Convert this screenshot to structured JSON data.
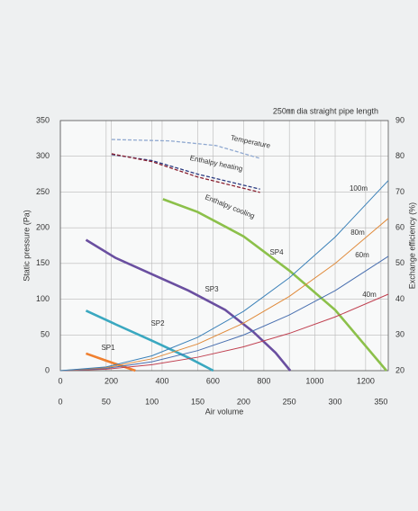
{
  "chart_data": {
    "type": "line",
    "title": "250㎜ dia straight pipe length",
    "xlabel": "Air volume",
    "ylabel": "Static pressure (Pa)",
    "y2label": "Exchange efficiency (%)",
    "xlim": [
      0,
      358
    ],
    "xticks": [
      0,
      50,
      100,
      150,
      200,
      250,
      300,
      350
    ],
    "x2lim": [
      0,
      1289
    ],
    "x2ticks": [
      0,
      200,
      400,
      600,
      800,
      1000,
      1200
    ],
    "ylim": [
      0,
      350
    ],
    "yticks": [
      0,
      50,
      100,
      150,
      200,
      250,
      300,
      350
    ],
    "y2lim": [
      20,
      90
    ],
    "y2ticks": [
      20,
      30,
      40,
      50,
      60,
      70,
      80,
      90
    ],
    "grid": true,
    "series": [
      {
        "name": "SP1",
        "color": "#f08030",
        "x": [
          28,
          50,
          82
        ],
        "values": [
          24,
          14,
          0
        ]
      },
      {
        "name": "SP2",
        "color": "#3aa8c0",
        "x": [
          28,
          60,
          100,
          140,
          167
        ],
        "values": [
          84,
          65,
          42,
          18,
          0
        ]
      },
      {
        "name": "SP3",
        "color": "#6a4fa0",
        "x": [
          28,
          60,
          100,
          140,
          180,
          210,
          235,
          251
        ],
        "values": [
          183,
          158,
          135,
          112,
          85,
          55,
          25,
          0
        ]
      },
      {
        "name": "SP4",
        "color": "#8cc04a",
        "x": [
          112,
          150,
          200,
          250,
          300,
          356
        ],
        "values": [
          240,
          222,
          188,
          140,
          85,
          0
        ]
      },
      {
        "name": "40m",
        "color": "#c04050",
        "x": [
          0,
          50,
          100,
          150,
          200,
          250,
          300,
          358
        ],
        "values": [
          0,
          2.1,
          8.3,
          18.8,
          33.4,
          52.2,
          75.2,
          107
        ]
      },
      {
        "name": "60m",
        "color": "#4a70b0",
        "x": [
          0,
          50,
          100,
          150,
          200,
          250,
          300,
          358
        ],
        "values": [
          0,
          3.1,
          12.5,
          28.1,
          49.9,
          78,
          112,
          160
        ]
      },
      {
        "name": "80m",
        "color": "#e08a3a",
        "x": [
          0,
          50,
          100,
          150,
          200,
          250,
          300,
          358
        ],
        "values": [
          0,
          4.2,
          16.6,
          37.4,
          66.5,
          104,
          150,
          213
        ]
      },
      {
        "name": "100m",
        "color": "#3a80b8",
        "x": [
          0,
          50,
          100,
          150,
          200,
          250,
          300,
          358
        ],
        "values": [
          0,
          5.2,
          20.8,
          46.7,
          83,
          130,
          187,
          266
        ]
      },
      {
        "name": "Temperature",
        "color": "#8fa8d0",
        "axis": "y2",
        "dashed": true,
        "x": [
          56,
          120,
          170,
          218
        ],
        "values": [
          84.7,
          84.3,
          83,
          79.4
        ]
      },
      {
        "name": "Enthalpy heating",
        "color": "#2a3a80",
        "axis": "y2",
        "dashed": true,
        "x": [
          56,
          100,
          150,
          218
        ],
        "values": [
          80.5,
          78.8,
          75,
          70.8
        ]
      },
      {
        "name": "Enthalpy cooling",
        "color": "#8a2030",
        "axis": "y2",
        "dashed": true,
        "x": [
          56,
          100,
          150,
          218
        ],
        "values": [
          80.7,
          78.5,
          74.2,
          69.9
        ]
      }
    ]
  }
}
